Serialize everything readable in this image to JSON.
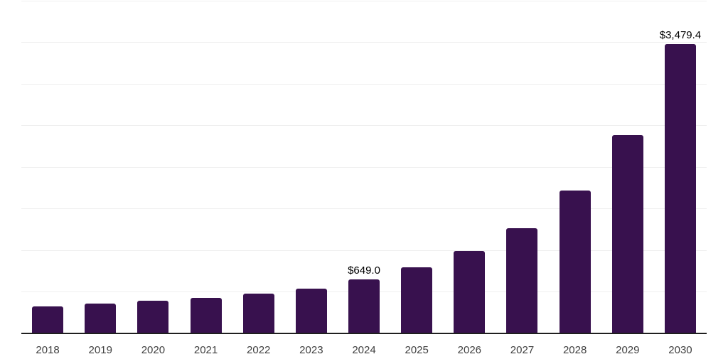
{
  "chart_data": {
    "type": "bar",
    "title": "",
    "xlabel": "",
    "ylabel": "",
    "categories": [
      "2018",
      "2019",
      "2020",
      "2021",
      "2022",
      "2023",
      "2024",
      "2025",
      "2026",
      "2027",
      "2028",
      "2029",
      "2030"
    ],
    "values": [
      325,
      358,
      392,
      427,
      478,
      538,
      649.0,
      795,
      990,
      1265,
      1715,
      2385,
      3479.4
    ],
    "bar_labels": [
      "",
      "",
      "",
      "",
      "",
      "",
      "$649.0",
      "",
      "",
      "",
      "",
      "",
      "$3,479.4"
    ],
    "ylim": [
      0,
      4000
    ],
    "gridline_step": 500,
    "grid": true,
    "legend_position": "none",
    "y_axis_tick_labels_visible": false
  },
  "colors": {
    "bar": "#38114e",
    "gridline": "#efefef",
    "axis_line": "#1f1f1f",
    "tick_label": "#3f3f3f",
    "data_label": "#000000",
    "background": "#ffffff"
  }
}
